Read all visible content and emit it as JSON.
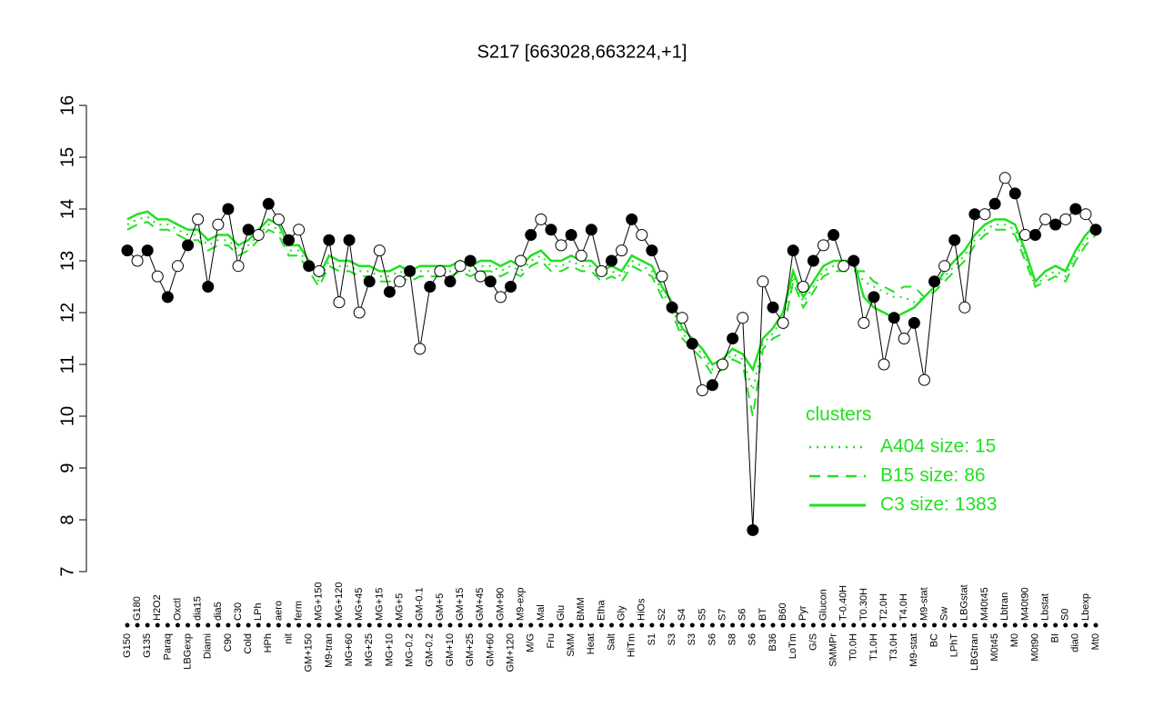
{
  "chart_data": {
    "type": "line",
    "title": "S217 [663028,663224,+1]",
    "categories": [
      "G150",
      "G180",
      "G135",
      "H2O2",
      "Paraq",
      "Oxctl",
      "LBGexp",
      "dia15",
      "Diami",
      "dia5",
      "C90",
      "C30",
      "Cold",
      "LPh",
      "HPh",
      "aero",
      "nit",
      "ferm",
      "GM+150",
      "MG+150",
      "M9-tran",
      "MG+120",
      "MG+60",
      "MG+45",
      "MG+25",
      "MG+15",
      "MG+10",
      "MG+5",
      "MG-0.2",
      "GM-0.1",
      "GM-0.2",
      "GM+5",
      "GM+10",
      "GM+15",
      "GM+25",
      "GM+45",
      "GM+60",
      "GM+90",
      "GM+120",
      "M9-exp",
      "M/G",
      "Mal",
      "Fru",
      "Glu",
      "SMM",
      "BMM",
      "Heat",
      "Etha",
      "Salt",
      "Gly",
      "HiTm",
      "HiOs",
      "S1",
      "S2",
      "S3",
      "S4",
      "S3",
      "S5",
      "S6",
      "S7",
      "S8",
      "S6",
      "S6",
      "BT",
      "B36",
      "B60",
      "LoTm",
      "Pyr",
      "G/S",
      "Glucon",
      "SMMPr",
      "T-0.40H",
      "T0.0H",
      "T0.30H",
      "T1.0H",
      "T2.0H",
      "T3.0H",
      "T4.0H",
      "M9-stat",
      "M9-stat",
      "BC",
      "Sw",
      "LPhT",
      "LBGstat",
      "LBGtran",
      "M40t45",
      "M0t45",
      "Lbtran",
      "M0",
      "M40t90",
      "M0t90",
      "Lbstat",
      "BI",
      "S0",
      "dia0",
      "Lbexp",
      "Mt0"
    ],
    "values": [
      13.2,
      13.0,
      13.2,
      12.7,
      12.3,
      12.9,
      13.3,
      13.8,
      12.5,
      13.7,
      14.0,
      12.9,
      13.6,
      13.5,
      14.1,
      13.8,
      13.4,
      13.6,
      12.9,
      12.8,
      13.4,
      12.2,
      13.4,
      12.0,
      12.6,
      13.2,
      12.4,
      12.6,
      12.8,
      11.3,
      12.5,
      12.8,
      12.6,
      12.9,
      13.0,
      12.7,
      12.6,
      12.3,
      12.5,
      13.0,
      13.5,
      13.8,
      13.6,
      13.3,
      13.5,
      13.1,
      13.6,
      12.8,
      13.0,
      13.2,
      13.8,
      13.5,
      13.2,
      12.7,
      12.1,
      11.9,
      11.4,
      10.5,
      10.6,
      11.0,
      11.5,
      11.9,
      7.8,
      12.6,
      12.1,
      11.8,
      13.2,
      12.5,
      13.0,
      13.3,
      13.5,
      12.9,
      13.0,
      11.8,
      12.3,
      11.0,
      11.9,
      11.5,
      11.8,
      10.7,
      12.6,
      12.9,
      13.4,
      12.1,
      13.9,
      13.9,
      14.1,
      14.6,
      14.3,
      13.5,
      13.5,
      13.8,
      13.7,
      13.8,
      14.0,
      13.9,
      13.6
    ],
    "color": "#000000",
    "legend_title": "clusters",
    "series": [
      {
        "name": "A404 size: 15",
        "color": "#22e022",
        "dash": "dotted",
        "values": [
          13.7,
          13.8,
          13.85,
          13.7,
          13.7,
          13.6,
          13.5,
          13.5,
          13.3,
          13.4,
          13.4,
          13.2,
          13.3,
          13.5,
          13.7,
          13.6,
          13.2,
          13.2,
          12.9,
          12.6,
          13.0,
          12.9,
          12.9,
          12.8,
          12.8,
          12.7,
          12.7,
          12.8,
          12.7,
          12.8,
          12.8,
          12.8,
          12.8,
          12.9,
          12.8,
          12.9,
          12.9,
          12.8,
          12.9,
          12.8,
          13.0,
          13.1,
          12.9,
          12.9,
          13.0,
          12.9,
          12.9,
          12.7,
          12.8,
          12.7,
          13.0,
          12.9,
          12.8,
          12.4,
          12.1,
          11.6,
          11.4,
          11.2,
          10.9,
          11.0,
          11.2,
          11.1,
          10.5,
          11.4,
          11.6,
          11.9,
          12.7,
          12.2,
          12.5,
          12.8,
          12.9,
          12.9,
          12.9,
          12.6,
          12.5,
          12.4,
          12.3,
          12.3,
          12.2,
          12.3,
          12.5,
          12.7,
          12.9,
          13.1,
          13.4,
          13.6,
          13.7,
          13.7,
          13.6,
          13.1,
          12.5,
          12.7,
          12.8,
          12.7,
          13.1,
          13.4,
          13.6
        ]
      },
      {
        "name": "B15 size: 86",
        "color": "#22e022",
        "dash": "dashed",
        "values": [
          13.6,
          13.7,
          13.75,
          13.6,
          13.6,
          13.5,
          13.4,
          13.4,
          13.2,
          13.3,
          13.3,
          13.1,
          13.2,
          13.4,
          13.6,
          13.5,
          13.1,
          13.1,
          12.8,
          12.5,
          12.9,
          12.8,
          12.8,
          12.7,
          12.7,
          12.6,
          12.6,
          12.7,
          12.6,
          12.7,
          12.7,
          12.7,
          12.7,
          12.8,
          12.7,
          12.8,
          12.8,
          12.7,
          12.8,
          12.7,
          12.9,
          13.0,
          12.8,
          12.8,
          12.9,
          12.8,
          12.8,
          12.6,
          12.7,
          12.6,
          12.9,
          12.8,
          12.7,
          12.3,
          12.0,
          11.5,
          11.3,
          11.1,
          10.8,
          10.9,
          11.1,
          11.0,
          10.0,
          11.3,
          11.5,
          11.6,
          12.6,
          12.1,
          12.4,
          12.7,
          12.8,
          12.8,
          12.8,
          12.8,
          12.6,
          12.5,
          12.4,
          12.5,
          12.5,
          12.3,
          12.4,
          12.6,
          12.8,
          13.0,
          13.3,
          13.5,
          13.6,
          13.6,
          13.5,
          13.0,
          12.5,
          12.6,
          12.7,
          12.6,
          13.0,
          13.3,
          13.5
        ]
      },
      {
        "name": "C3 size: 1383",
        "color": "#22e022",
        "dash": "solid",
        "values": [
          13.8,
          13.9,
          13.95,
          13.8,
          13.8,
          13.7,
          13.6,
          13.6,
          13.4,
          13.5,
          13.5,
          13.3,
          13.4,
          13.6,
          13.8,
          13.7,
          13.3,
          13.3,
          13.0,
          12.7,
          13.1,
          13.0,
          13.0,
          12.9,
          12.9,
          12.8,
          12.8,
          12.9,
          12.8,
          12.9,
          12.9,
          12.9,
          12.9,
          13.0,
          12.9,
          13.0,
          13.0,
          12.9,
          13.0,
          12.9,
          13.1,
          13.2,
          13.0,
          13.0,
          13.1,
          13.0,
          13.0,
          12.8,
          12.9,
          12.8,
          13.1,
          13.0,
          12.9,
          12.5,
          12.2,
          11.7,
          11.5,
          11.3,
          11.0,
          11.1,
          11.3,
          11.2,
          10.9,
          11.5,
          11.7,
          12.0,
          12.8,
          12.3,
          12.6,
          12.9,
          13.0,
          13.0,
          13.0,
          12.3,
          12.1,
          12.0,
          11.9,
          12.0,
          12.1,
          12.3,
          12.5,
          12.8,
          13.0,
          13.2,
          13.5,
          13.7,
          13.8,
          13.8,
          13.7,
          13.2,
          12.6,
          12.8,
          12.9,
          12.8,
          13.2,
          13.5,
          13.7
        ]
      }
    ],
    "ylim": [
      7,
      16
    ],
    "yticks": [
      7,
      8,
      9,
      10,
      11,
      12,
      13,
      14,
      15,
      16
    ]
  }
}
